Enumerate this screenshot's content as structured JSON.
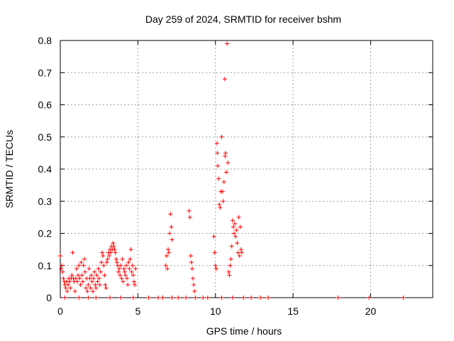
{
  "chart_data": {
    "type": "scatter",
    "title": "Day 259 of 2024, SRMTID for receiver bshm",
    "xlabel": "GPS time / hours",
    "ylabel": "SRMTID / TECUs",
    "xlim": [
      0,
      24
    ],
    "ylim": [
      0,
      0.8
    ],
    "x_ticks": [
      0,
      5,
      10,
      15,
      20
    ],
    "y_ticks": [
      0,
      0.1,
      0.2,
      0.3,
      0.4,
      0.5,
      0.6,
      0.7,
      0.8
    ],
    "x_tick_labels": [
      "0",
      "5",
      "10",
      "15",
      "20"
    ],
    "y_tick_labels": [
      "0",
      "0.1",
      "0.2",
      "0.3",
      "0.4",
      "0.5",
      "0.6",
      "0.7",
      "0.8"
    ],
    "grid": true,
    "legend": "none",
    "marker": "+",
    "series_color": "#ff0000",
    "points": [
      [
        0.0,
        0.13
      ],
      [
        0.05,
        0.09
      ],
      [
        0.1,
        0.1
      ],
      [
        0.15,
        0.08
      ],
      [
        0.2,
        0.06
      ],
      [
        0.25,
        0.05
      ],
      [
        0.3,
        0.04
      ],
      [
        0.35,
        0.03
      ],
      [
        0.4,
        0.05
      ],
      [
        0.45,
        0.02
      ],
      [
        0.5,
        0.04
      ],
      [
        0.55,
        0.06
      ],
      [
        0.6,
        0.05
      ],
      [
        0.65,
        0.03
      ],
      [
        0.7,
        0.06
      ],
      [
        0.75,
        0.07
      ],
      [
        0.8,
        0.14
      ],
      [
        0.85,
        0.06
      ],
      [
        0.9,
        0.05
      ],
      [
        0.95,
        0.02
      ],
      [
        1.0,
        0.06
      ],
      [
        1.05,
        0.09
      ],
      [
        1.1,
        0.05
      ],
      [
        1.15,
        0.07
      ],
      [
        1.2,
        0.1
      ],
      [
        1.25,
        0.06
      ],
      [
        1.3,
        0.04
      ],
      [
        1.35,
        0.11
      ],
      [
        1.4,
        0.07
      ],
      [
        1.45,
        0.05
      ],
      [
        1.5,
        0.1
      ],
      [
        1.55,
        0.12
      ],
      [
        1.6,
        0.08
      ],
      [
        1.65,
        0.03
      ],
      [
        1.7,
        0.06
      ],
      [
        1.75,
        0.02
      ],
      [
        1.8,
        0.04
      ],
      [
        1.85,
        0.09
      ],
      [
        1.9,
        0.06
      ],
      [
        1.95,
        0.03
      ],
      [
        2.0,
        0.07
      ],
      [
        2.05,
        0.05
      ],
      [
        2.1,
        0.02
      ],
      [
        2.15,
        0.06
      ],
      [
        2.2,
        0.08
      ],
      [
        2.25,
        0.04
      ],
      [
        2.3,
        0.03
      ],
      [
        2.35,
        0.07
      ],
      [
        2.4,
        0.05
      ],
      [
        2.45,
        0.09
      ],
      [
        2.5,
        0.06
      ],
      [
        2.55,
        0.04
      ],
      [
        2.6,
        0.08
      ],
      [
        2.65,
        0.11
      ],
      [
        2.7,
        0.14
      ],
      [
        2.75,
        0.13
      ],
      [
        2.8,
        0.1
      ],
      [
        2.85,
        0.07
      ],
      [
        2.9,
        0.04
      ],
      [
        2.95,
        0.03
      ],
      [
        3.0,
        0.11
      ],
      [
        3.05,
        0.12
      ],
      [
        3.1,
        0.14
      ],
      [
        3.15,
        0.13
      ],
      [
        3.2,
        0.15
      ],
      [
        3.25,
        0.14
      ],
      [
        3.3,
        0.16
      ],
      [
        3.35,
        0.15
      ],
      [
        3.4,
        0.17
      ],
      [
        3.45,
        0.16
      ],
      [
        3.5,
        0.15
      ],
      [
        3.55,
        0.14
      ],
      [
        3.6,
        0.12
      ],
      [
        3.65,
        0.11
      ],
      [
        3.7,
        0.1
      ],
      [
        3.75,
        0.08
      ],
      [
        3.8,
        0.09
      ],
      [
        3.85,
        0.07
      ],
      [
        3.9,
        0.1
      ],
      [
        3.95,
        0.06
      ],
      [
        4.0,
        0.12
      ],
      [
        4.05,
        0.05
      ],
      [
        4.1,
        0.09
      ],
      [
        4.15,
        0.08
      ],
      [
        4.2,
        0.07
      ],
      [
        4.25,
        0.1
      ],
      [
        4.3,
        0.06
      ],
      [
        4.35,
        0.04
      ],
      [
        4.4,
        0.11
      ],
      [
        4.45,
        0.09
      ],
      [
        4.5,
        0.12
      ],
      [
        4.55,
        0.15
      ],
      [
        4.6,
        0.08
      ],
      [
        4.65,
        0.1
      ],
      [
        4.7,
        0.07
      ],
      [
        4.75,
        0.05
      ],
      [
        4.8,
        0.04
      ],
      [
        4.85,
        0.09
      ],
      [
        6.8,
        0.1
      ],
      [
        6.85,
        0.13
      ],
      [
        6.9,
        0.09
      ],
      [
        6.95,
        0.15
      ],
      [
        7.0,
        0.14
      ],
      [
        7.05,
        0.2
      ],
      [
        7.1,
        0.26
      ],
      [
        7.15,
        0.22
      ],
      [
        7.2,
        0.18
      ],
      [
        8.3,
        0.27
      ],
      [
        8.35,
        0.25
      ],
      [
        8.4,
        0.13
      ],
      [
        8.45,
        0.11
      ],
      [
        8.5,
        0.09
      ],
      [
        8.55,
        0.06
      ],
      [
        8.6,
        0.04
      ],
      [
        8.65,
        0.02
      ],
      [
        9.9,
        0.19
      ],
      [
        9.95,
        0.14
      ],
      [
        10.0,
        0.1
      ],
      [
        10.05,
        0.09
      ],
      [
        10.1,
        0.48
      ],
      [
        10.12,
        0.45
      ],
      [
        10.15,
        0.41
      ],
      [
        10.2,
        0.37
      ],
      [
        10.25,
        0.29
      ],
      [
        10.3,
        0.28
      ],
      [
        10.35,
        0.33
      ],
      [
        10.4,
        0.5
      ],
      [
        10.45,
        0.33
      ],
      [
        10.5,
        0.3
      ],
      [
        10.55,
        0.36
      ],
      [
        10.6,
        0.68
      ],
      [
        10.62,
        0.44
      ],
      [
        10.65,
        0.45
      ],
      [
        10.7,
        0.39
      ],
      [
        10.75,
        0.79
      ],
      [
        10.8,
        0.42
      ],
      [
        10.85,
        0.08
      ],
      [
        10.9,
        0.07
      ],
      [
        10.95,
        0.1
      ],
      [
        11.0,
        0.12
      ],
      [
        11.05,
        0.16
      ],
      [
        11.1,
        0.24
      ],
      [
        11.15,
        0.22
      ],
      [
        11.2,
        0.2
      ],
      [
        11.25,
        0.23
      ],
      [
        11.3,
        0.19
      ],
      [
        11.35,
        0.21
      ],
      [
        11.4,
        0.17
      ],
      [
        11.45,
        0.14
      ],
      [
        11.5,
        0.25
      ],
      [
        11.55,
        0.13
      ],
      [
        11.6,
        0.22
      ],
      [
        11.65,
        0.15
      ],
      [
        11.7,
        0.14
      ],
      [
        0.3,
        0.0
      ],
      [
        1.2,
        0.0
      ],
      [
        1.8,
        0.0
      ],
      [
        2.3,
        0.0
      ],
      [
        3.2,
        0.0
      ],
      [
        3.9,
        0.0
      ],
      [
        4.7,
        0.0
      ],
      [
        5.7,
        0.0
      ],
      [
        6.3,
        0.0
      ],
      [
        6.6,
        0.0
      ],
      [
        7.2,
        0.0
      ],
      [
        7.6,
        0.0
      ],
      [
        8.1,
        0.0
      ],
      [
        8.7,
        0.0
      ],
      [
        9.2,
        0.0
      ],
      [
        9.5,
        0.0
      ],
      [
        10.4,
        0.0
      ],
      [
        11.1,
        0.0
      ],
      [
        11.8,
        0.0
      ],
      [
        12.3,
        0.0
      ],
      [
        12.9,
        0.0
      ],
      [
        13.4,
        0.0
      ],
      [
        17.9,
        0.0
      ],
      [
        19.9,
        0.0
      ],
      [
        22.1,
        0.0
      ]
    ]
  }
}
